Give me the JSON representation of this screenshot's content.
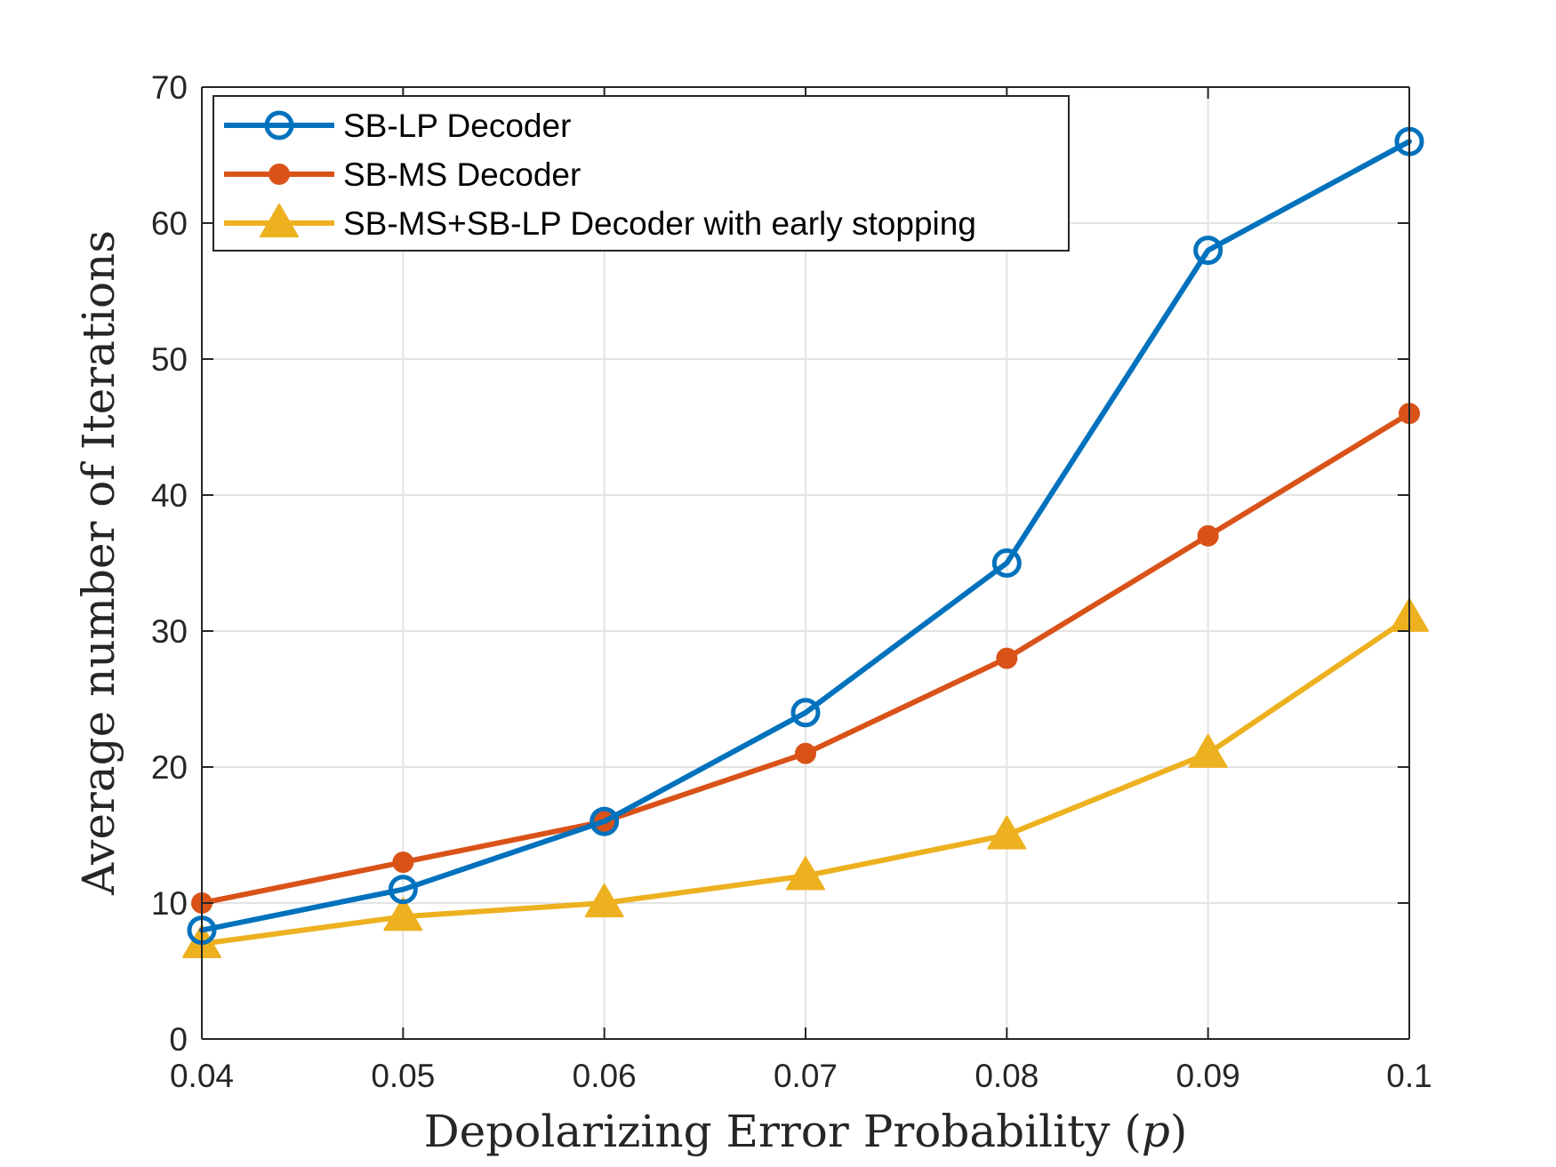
{
  "chart_data": {
    "type": "line",
    "title": "",
    "xlabel": "Depolarizing Error Probability (p)",
    "ylabel": "Average number of Iterations",
    "x": [
      0.04,
      0.05,
      0.06,
      0.07,
      0.08,
      0.09,
      0.1
    ],
    "x_ticks": [
      "0.04",
      "0.05",
      "0.06",
      "0.07",
      "0.08",
      "0.09",
      "0.1"
    ],
    "y_ticks": [
      "0",
      "10",
      "20",
      "30",
      "40",
      "50",
      "60",
      "70"
    ],
    "xlim": [
      0.04,
      0.1
    ],
    "ylim": [
      0,
      70
    ],
    "grid": true,
    "legend_position": "top-left",
    "series": [
      {
        "name": "SB-LP Decoder",
        "color": "#0072BD",
        "marker": "open-circle",
        "values": [
          8,
          11,
          16,
          24,
          35,
          58,
          66
        ]
      },
      {
        "name": "SB-MS Decoder",
        "color": "#D95319",
        "marker": "filled-circle",
        "values": [
          10,
          13,
          16,
          21,
          28,
          37,
          46
        ]
      },
      {
        "name": "SB-MS+SB-LP Decoder with early stopping",
        "color": "#EDB120",
        "marker": "triangle",
        "values": [
          7,
          9,
          10,
          12,
          15,
          21,
          31
        ]
      }
    ]
  }
}
